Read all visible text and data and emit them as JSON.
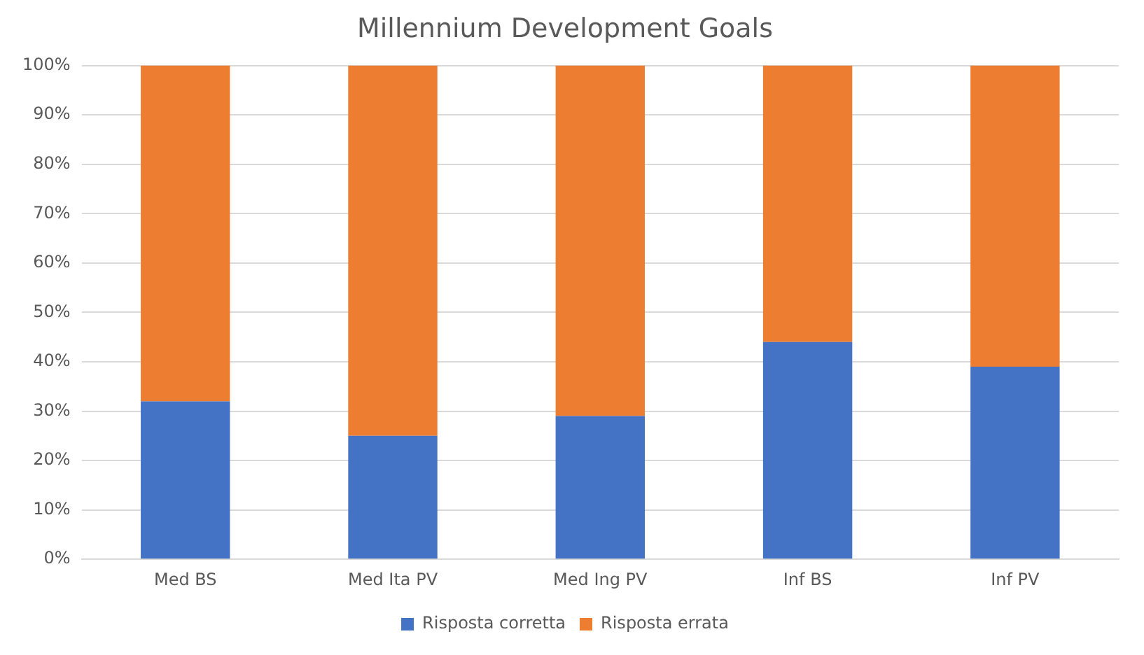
{
  "chart_data": {
    "type": "bar",
    "title": "Millennium Development Goals",
    "categories": [
      "Med BS",
      "Med Ita PV",
      "Med Ing PV",
      "Inf BS",
      "Inf PV"
    ],
    "stacked": true,
    "series": [
      {
        "name": "Risposta corretta",
        "color": "#4472c4",
        "values": [
          32,
          25,
          29,
          44,
          39
        ]
      },
      {
        "name": "Risposta errata",
        "color": "#ed7d31",
        "values": [
          68,
          75,
          71,
          56,
          61
        ]
      }
    ],
    "ylim": [
      0,
      100
    ],
    "yticks": [
      {
        "value": 0,
        "label": "0%"
      },
      {
        "value": 10,
        "label": "10%"
      },
      {
        "value": 20,
        "label": "20%"
      },
      {
        "value": 30,
        "label": "30%"
      },
      {
        "value": 40,
        "label": "40%"
      },
      {
        "value": 50,
        "label": "50%"
      },
      {
        "value": 60,
        "label": "60%"
      },
      {
        "value": 70,
        "label": "70%"
      },
      {
        "value": 80,
        "label": "80%"
      },
      {
        "value": 90,
        "label": "90%"
      },
      {
        "value": 100,
        "label": "100%"
      }
    ],
    "grid": "y",
    "legend": "bottom"
  }
}
